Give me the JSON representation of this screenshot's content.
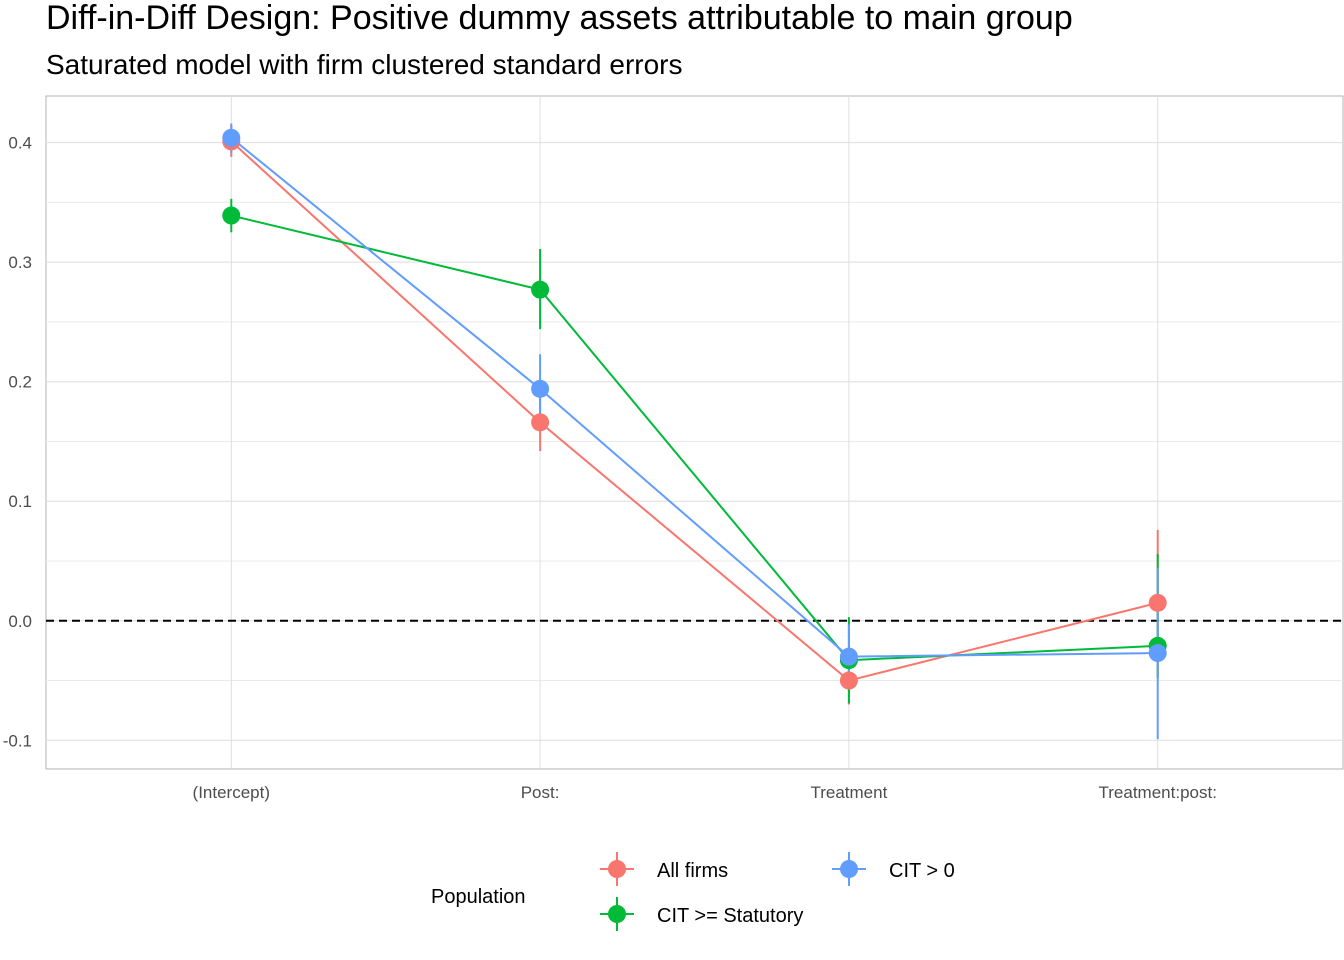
{
  "chart_data": {
    "type": "scatter",
    "title": "Diff-in-Diff Design: Positive dummy assets attributable to main group",
    "subtitle": "Saturated model with firm clustered standard errors",
    "xlabel": "",
    "ylabel": "",
    "categories": [
      "(Intercept)",
      "Post:",
      "Treatment",
      "Treatment:post:"
    ],
    "ylim": [
      -0.124,
      0.439
    ],
    "y_ticks": [
      0.4,
      0.3,
      0.2,
      0.1,
      0.0,
      -0.1
    ],
    "y_tick_labels": [
      "0.4",
      "0.3",
      "0.2",
      "0.1",
      "0.0",
      "-0.1"
    ],
    "reference_line": 0.0,
    "grid": true,
    "legend_position": "bottom",
    "legend_title": "Population",
    "series": [
      {
        "name": "All firms",
        "color": "#F8766D",
        "values": [
          0.401,
          0.166,
          -0.05,
          0.015
        ],
        "lower": [
          0.388,
          0.142,
          -0.07,
          -0.047
        ],
        "upper": [
          0.414,
          0.19,
          -0.031,
          0.076
        ]
      },
      {
        "name": "CIT >= Statutory",
        "color": "#00BA38",
        "values": [
          0.339,
          0.277,
          -0.033,
          -0.021
        ],
        "lower": [
          0.325,
          0.244,
          -0.069,
          -0.048
        ],
        "upper": [
          0.353,
          0.311,
          0.003,
          0.056
        ]
      },
      {
        "name": "CIT > 0",
        "color": "#619CFF",
        "values": [
          0.404,
          0.194,
          -0.03,
          -0.027
        ],
        "lower": [
          0.391,
          0.166,
          -0.055,
          -0.099
        ],
        "upper": [
          0.416,
          0.223,
          -0.003,
          0.044
        ]
      }
    ]
  }
}
